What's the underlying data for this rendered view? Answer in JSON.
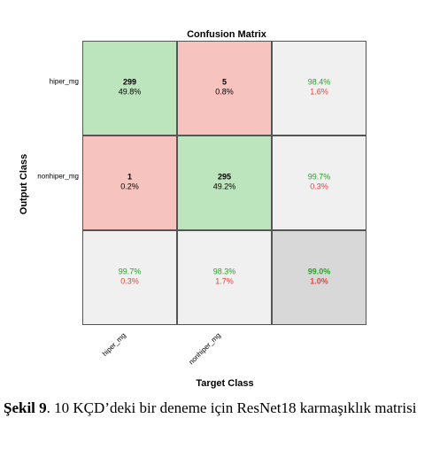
{
  "chart_data": {
    "type": "heatmap",
    "title": "Confusion Matrix",
    "xlabel": "Target Class",
    "ylabel": "Output Class",
    "x_tick_labels": [
      "hiper_mg",
      "nonhiper_mg"
    ],
    "y_tick_labels": [
      "hiper_mg",
      "nonhiper_mg"
    ],
    "cells": [
      [
        {
          "count": "299",
          "percent": "49.8%"
        },
        {
          "count": "5",
          "percent": "0.8%"
        }
      ],
      [
        {
          "count": "1",
          "percent": "0.2%"
        },
        {
          "count": "295",
          "percent": "49.2%"
        }
      ]
    ],
    "row_summary": [
      {
        "correct": "98.4%",
        "error": "1.6%"
      },
      {
        "correct": "99.7%",
        "error": "0.3%"
      }
    ],
    "col_summary": [
      {
        "correct": "99.7%",
        "error": "0.3%"
      },
      {
        "correct": "98.3%",
        "error": "1.7%"
      }
    ],
    "overall": {
      "correct": "99.0%",
      "error": "1.0%"
    },
    "colors": {
      "correct_cell": "#bde5bd",
      "wrong_cell": "#f7c3be",
      "summary_cell": "#f0f0f0",
      "overall_cell": "#d8d8d8",
      "correct_text": "#2ca02c",
      "error_text": "#e8413c"
    }
  },
  "caption": {
    "label": "Şekil 9",
    "text": ". 10 KÇD’deki bir deneme için ResNet18 karmaşıklık matrisi"
  }
}
